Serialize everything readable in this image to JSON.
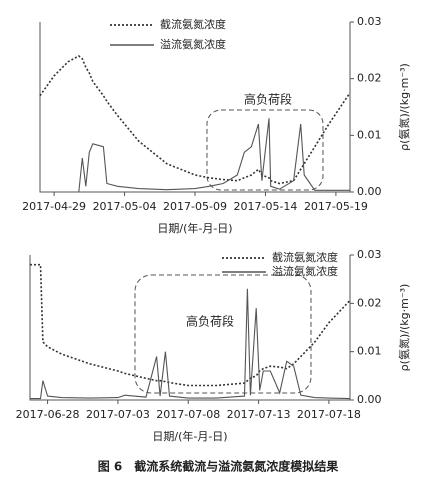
{
  "caption": "图 6　截流系统截流与溢流氨氮浓度模拟结果",
  "chart_data": [
    {
      "type": "line",
      "x_label": "日期/(年-月-日)",
      "y_label": "ρ(氨氮)/(kg·m⁻³)",
      "annotation": "高负荷段",
      "legend": "top-left",
      "xlim": [
        "2017-04-28",
        "2017-05-20"
      ],
      "xticks": [
        "2017-04-29",
        "2017-05-04",
        "2017-05-09",
        "2017-05-14",
        "2017-05-19"
      ],
      "ylim": [
        0,
        0.03
      ],
      "yticks": [
        {
          "value": 0,
          "label": "0.00"
        },
        0.01,
        0.02,
        0.03
      ],
      "x": [
        "2017-04-28 00:00",
        "2017-04-29 00:00",
        "2017-04-30 00:00",
        "2017-04-30 18:00",
        "2017-05-01 00:00",
        "2017-05-01 06:00",
        "2017-05-01 12:00",
        "2017-05-01 18:00",
        "2017-05-02 12:00",
        "2017-05-02 18:00",
        "2017-05-03 12:00",
        "2017-05-05 00:00",
        "2017-05-07 00:00",
        "2017-05-09 00:00",
        "2017-05-10 00:00",
        "2017-05-11 00:00",
        "2017-05-12 00:00",
        "2017-05-12 12:00",
        "2017-05-13 00:00",
        "2017-05-13 12:00",
        "2017-05-13 18:00",
        "2017-05-14 06:00",
        "2017-05-14 09:00",
        "2017-05-15 00:00",
        "2017-05-16 00:00",
        "2017-05-16 12:00",
        "2017-05-16 18:00",
        "2017-05-17 12:00",
        "2017-05-18 12:00",
        "2017-05-20 00:00"
      ],
      "series": [
        {
          "name": "截流氨氮浓度",
          "color": "#333333",
          "dash": "dotted",
          "values": [
            0.017,
            0.0205,
            0.023,
            0.024,
            0.0235,
            0.022,
            0.021,
            0.0195,
            0.017,
            0.016,
            0.0135,
            0.009,
            0.005,
            0.003,
            0.0025,
            0.0022,
            0.002,
            0.0025,
            0.003,
            0.004,
            0.003,
            0.0025,
            0.002,
            0.0015,
            0.002,
            0.004,
            0.005,
            0.008,
            0.012,
            0.0175
          ]
        },
        {
          "name": "溢流氨氮浓度",
          "color": "#555555",
          "dash": "solid",
          "values": [
            0,
            0,
            0,
            0,
            0.006,
            0.001,
            0.007,
            0.0085,
            0.008,
            0.0015,
            0.001,
            0.0006,
            0.0004,
            0.0006,
            0.001,
            0.0015,
            0.003,
            0.007,
            0.008,
            0.012,
            0.002,
            0.013,
            0.001,
            0.0005,
            0.002,
            0.012,
            0.003,
            0.0003,
            0.0003,
            0.0003
          ]
        }
      ]
    },
    {
      "type": "line",
      "x_label": "日期/(年-月-日)",
      "y_label": "ρ(氨氮)/(kg·m⁻³)",
      "annotation": "高负荷段",
      "legend": "top-right",
      "xlim": [
        "2017-06-26 18:00",
        "2017-07-19 12:00"
      ],
      "xticks": [
        "2017-06-28",
        "2017-07-03",
        "2017-07-08",
        "2017-07-13",
        "2017-07-18"
      ],
      "ylim": [
        0,
        0.03
      ],
      "yticks": [
        {
          "value": 0,
          "label": "0.00"
        },
        0.01,
        0.02,
        0.03
      ],
      "x": [
        "2017-06-26 18:00",
        "2017-06-27 12:00",
        "2017-06-27 16:00",
        "2017-06-28 00:00",
        "2017-06-29 00:00",
        "2017-07-01 00:00",
        "2017-07-03 00:00",
        "2017-07-03 12:00",
        "2017-07-05 00:00",
        "2017-07-05 18:00",
        "2017-07-06 00:00",
        "2017-07-06 09:00",
        "2017-07-06 16:00",
        "2017-07-08 00:00",
        "2017-07-10 00:00",
        "2017-07-12 00:00",
        "2017-07-12 05:00",
        "2017-07-12 10:00",
        "2017-07-12 20:00",
        "2017-07-13 02:00",
        "2017-07-13 08:00",
        "2017-07-13 20:00",
        "2017-07-14 12:00",
        "2017-07-15 00:00",
        "2017-07-15 12:00",
        "2017-07-16 00:00",
        "2017-07-17 00:00",
        "2017-07-18 00:00",
        "2017-07-19 12:00"
      ],
      "series": [
        {
          "name": "截流氨氮浓度",
          "color": "#333333",
          "dash": "dotted",
          "values": [
            0.028,
            0.028,
            0.012,
            0.011,
            0.0095,
            0.0075,
            0.006,
            0.0055,
            0.0045,
            0.004,
            0.004,
            0.0038,
            0.0036,
            0.003,
            0.003,
            0.0035,
            0.004,
            0.0045,
            0.005,
            0.006,
            0.0065,
            0.007,
            0.0068,
            0.0065,
            0.0075,
            0.009,
            0.012,
            0.016,
            0.0206
          ]
        },
        {
          "name": "溢流氨氮浓度",
          "color": "#555555",
          "dash": "solid",
          "values": [
            0.0003,
            0.0003,
            0.004,
            0.0008,
            0.0005,
            0.0004,
            0.0005,
            0.001,
            0.0006,
            0.009,
            0.0008,
            0.01,
            0.0008,
            0.0004,
            0.0004,
            0.0008,
            0.023,
            0.001,
            0.019,
            0.002,
            0.006,
            0.006,
            0.0015,
            0.008,
            0.007,
            0.001,
            0.0005,
            0.0004,
            0.0003
          ]
        }
      ]
    }
  ]
}
